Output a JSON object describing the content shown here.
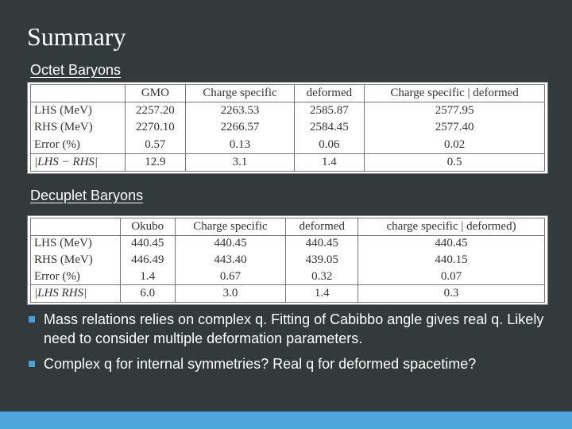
{
  "slide": {
    "title": "Summary",
    "octet": {
      "label": "Octet Baryons",
      "headers": [
        "",
        "GMO",
        "Charge specific",
        "deformed",
        "Charge specific  |  deformed"
      ],
      "rows": [
        [
          "LHS (MeV)",
          "2257.20",
          "2263.53",
          "2585.87",
          "2577.95"
        ],
        [
          "RHS (MeV)",
          "2270.10",
          "2266.57",
          "2584.45",
          "2577.40"
        ],
        [
          "Error (%)",
          "0.57",
          "0.13",
          "0.06",
          "0.02"
        ],
        [
          "|LHS − RHS|",
          "12.9",
          "3.1",
          "1.4",
          "0.5"
        ]
      ]
    },
    "decuplet": {
      "label": "Decuplet Baryons",
      "headers": [
        "",
        "Okubo",
        "Charge specific",
        "deformed",
        "charge specific  |  deformed)"
      ],
      "rows": [
        [
          "LHS (MeV)",
          "440.45",
          "440.45",
          "440.45",
          "440.45"
        ],
        [
          "RHS (MeV)",
          "446.49",
          "443.40",
          "439.05",
          "440.15"
        ],
        [
          "Error (%)",
          "1.4",
          "0.67",
          "0.32",
          "0.07"
        ],
        [
          "|LHS    RHS|",
          "6.0",
          "3.0",
          "1.4",
          "0.3"
        ]
      ]
    },
    "bullets": [
      "Mass relations relies on complex q. Fitting of Cabibbo angle gives real q. Likely need to consider multiple deformation parameters.",
      "Complex q for internal symmetries? Real q for deformed spacetime?"
    ],
    "colors": {
      "background": "#323a3b",
      "accent": "#4fa6dd",
      "bullet": "#47a1d8"
    }
  }
}
